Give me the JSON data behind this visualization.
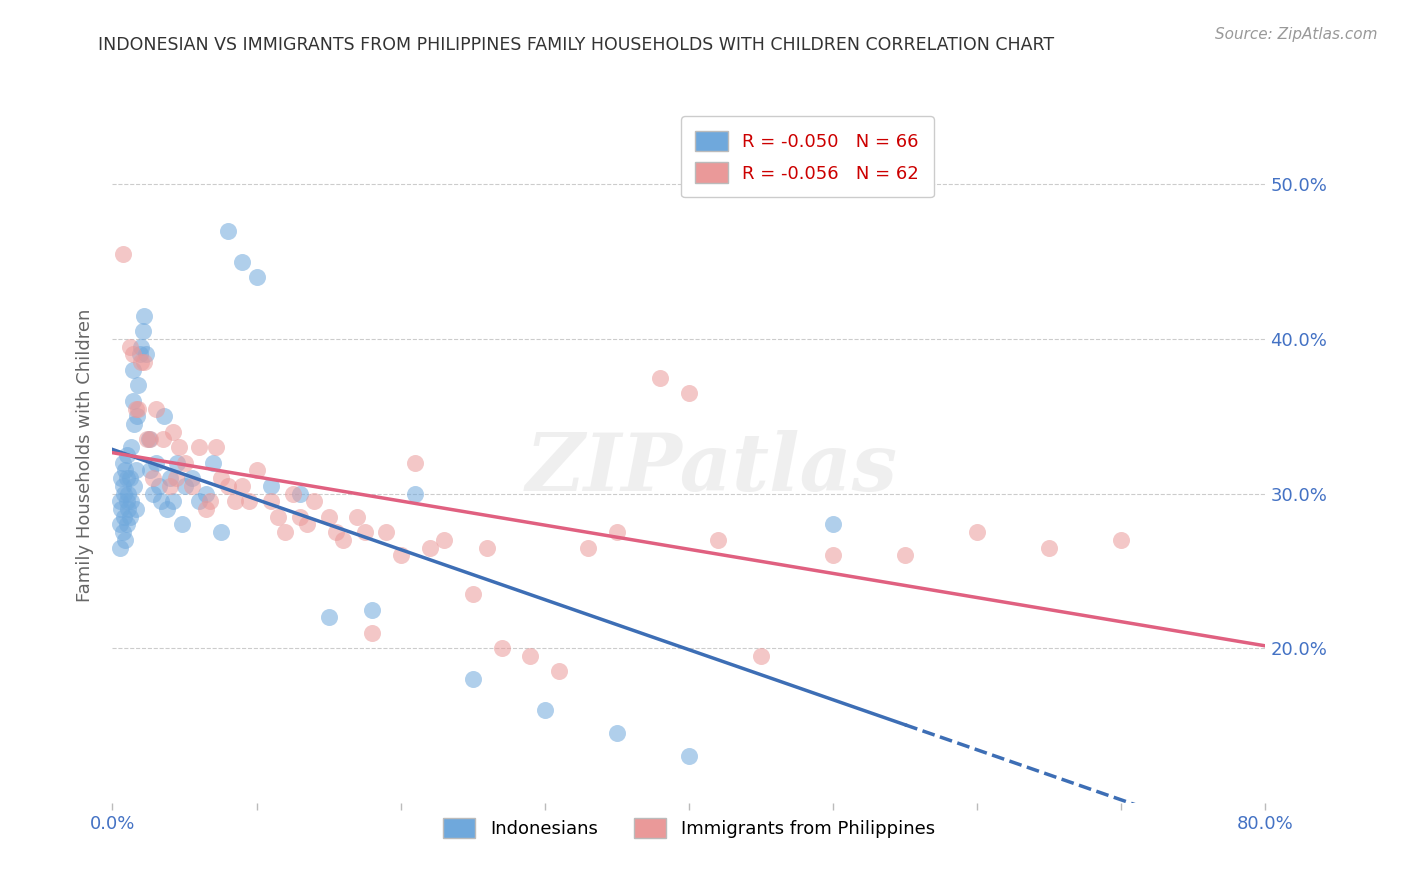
{
  "title": "INDONESIAN VS IMMIGRANTS FROM PHILIPPINES FAMILY HOUSEHOLDS WITH CHILDREN CORRELATION CHART",
  "source": "Source: ZipAtlas.com",
  "ylabel": "Family Households with Children",
  "xlim": [
    0.0,
    0.8
  ],
  "ylim": [
    0.1,
    0.55
  ],
  "x_ticks": [
    0.0,
    0.1,
    0.2,
    0.3,
    0.4,
    0.5,
    0.6,
    0.7,
    0.8
  ],
  "x_tick_labels": [
    "0.0%",
    "",
    "",
    "",
    "",
    "",
    "",
    "",
    "80.0%"
  ],
  "y_ticks": [
    0.2,
    0.3,
    0.4,
    0.5
  ],
  "y_tick_labels": [
    "20.0%",
    "30.0%",
    "40.0%",
    "50.0%"
  ],
  "legend_r1": "R = -0.050",
  "legend_n1": "N = 66",
  "legend_r2": "R = -0.056",
  "legend_n2": "N = 62",
  "legend_label1": "Indonesians",
  "legend_label2": "Immigrants from Philippines",
  "blue_color": "#6fa8dc",
  "pink_color": "#ea9999",
  "blue_line_color": "#3d6eb5",
  "pink_line_color": "#e06080",
  "watermark": "ZIPatlas",
  "indonesian_x": [
    0.005,
    0.005,
    0.005,
    0.006,
    0.006,
    0.007,
    0.007,
    0.007,
    0.008,
    0.008,
    0.009,
    0.009,
    0.01,
    0.01,
    0.01,
    0.01,
    0.011,
    0.011,
    0.012,
    0.012,
    0.013,
    0.013,
    0.014,
    0.014,
    0.015,
    0.015,
    0.016,
    0.016,
    0.017,
    0.018,
    0.019,
    0.02,
    0.021,
    0.022,
    0.023,
    0.025,
    0.026,
    0.028,
    0.03,
    0.032,
    0.034,
    0.036,
    0.038,
    0.04,
    0.042,
    0.045,
    0.048,
    0.05,
    0.055,
    0.06,
    0.065,
    0.07,
    0.075,
    0.08,
    0.09,
    0.1,
    0.11,
    0.13,
    0.15,
    0.18,
    0.21,
    0.25,
    0.3,
    0.35,
    0.4,
    0.5
  ],
  "indonesian_y": [
    0.295,
    0.28,
    0.265,
    0.31,
    0.29,
    0.275,
    0.305,
    0.32,
    0.285,
    0.3,
    0.27,
    0.315,
    0.295,
    0.28,
    0.31,
    0.325,
    0.3,
    0.29,
    0.285,
    0.31,
    0.295,
    0.33,
    0.36,
    0.38,
    0.345,
    0.305,
    0.29,
    0.315,
    0.35,
    0.37,
    0.39,
    0.395,
    0.405,
    0.415,
    0.39,
    0.335,
    0.315,
    0.3,
    0.32,
    0.305,
    0.295,
    0.35,
    0.29,
    0.31,
    0.295,
    0.32,
    0.28,
    0.305,
    0.31,
    0.295,
    0.3,
    0.32,
    0.275,
    0.47,
    0.45,
    0.44,
    0.305,
    0.3,
    0.22,
    0.225,
    0.3,
    0.18,
    0.16,
    0.145,
    0.13,
    0.28
  ],
  "philippine_x": [
    0.007,
    0.012,
    0.014,
    0.016,
    0.018,
    0.02,
    0.022,
    0.024,
    0.026,
    0.028,
    0.03,
    0.035,
    0.04,
    0.042,
    0.044,
    0.046,
    0.05,
    0.055,
    0.06,
    0.065,
    0.068,
    0.072,
    0.075,
    0.08,
    0.085,
    0.09,
    0.095,
    0.1,
    0.11,
    0.115,
    0.12,
    0.125,
    0.13,
    0.135,
    0.14,
    0.15,
    0.155,
    0.16,
    0.17,
    0.175,
    0.18,
    0.19,
    0.2,
    0.21,
    0.22,
    0.23,
    0.25,
    0.26,
    0.27,
    0.29,
    0.31,
    0.33,
    0.35,
    0.38,
    0.4,
    0.42,
    0.45,
    0.5,
    0.55,
    0.6,
    0.65,
    0.7
  ],
  "philippine_y": [
    0.455,
    0.395,
    0.39,
    0.355,
    0.355,
    0.385,
    0.385,
    0.335,
    0.335,
    0.31,
    0.355,
    0.335,
    0.305,
    0.34,
    0.31,
    0.33,
    0.32,
    0.305,
    0.33,
    0.29,
    0.295,
    0.33,
    0.31,
    0.305,
    0.295,
    0.305,
    0.295,
    0.315,
    0.295,
    0.285,
    0.275,
    0.3,
    0.285,
    0.28,
    0.295,
    0.285,
    0.275,
    0.27,
    0.285,
    0.275,
    0.21,
    0.275,
    0.26,
    0.32,
    0.265,
    0.27,
    0.235,
    0.265,
    0.2,
    0.195,
    0.185,
    0.265,
    0.275,
    0.375,
    0.365,
    0.27,
    0.195,
    0.26,
    0.26,
    0.275,
    0.265,
    0.27
  ]
}
